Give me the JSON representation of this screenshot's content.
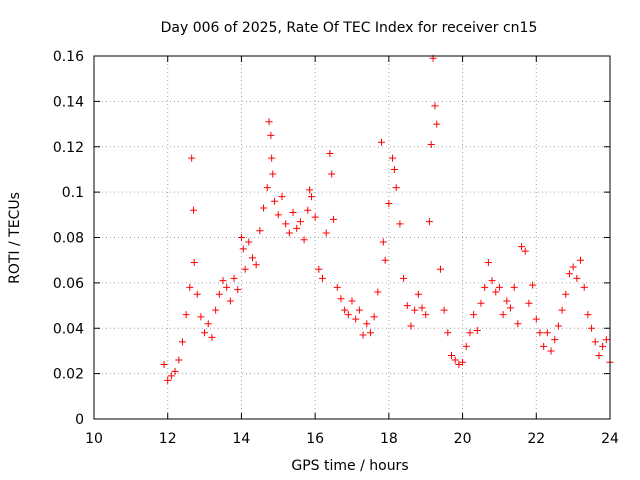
{
  "chart_data": {
    "type": "scatter",
    "title": "Day 006 of 2025, Rate Of TEC Index for receiver cn15",
    "xlabel": "GPS time / hours",
    "ylabel": "ROTI / TECUs",
    "xlim": [
      10,
      24
    ],
    "ylim": [
      0,
      0.16
    ],
    "x_ticks": [
      "10",
      "12",
      "14",
      "16",
      "18",
      "20",
      "22",
      "24"
    ],
    "y_ticks": [
      "0",
      "0.02",
      "0.04",
      "0.06",
      "0.08",
      "0.1",
      "0.12",
      "0.14",
      "0.16"
    ],
    "grid": true,
    "marker": "+",
    "color": "#ff0000",
    "series": [
      {
        "x": [
          11.9,
          12.0,
          12.1,
          12.2,
          12.3,
          12.4,
          12.5,
          12.6,
          12.65,
          12.7,
          12.72,
          12.8,
          12.9,
          13.0,
          13.1,
          13.2,
          13.3,
          13.4,
          13.5,
          13.6,
          13.7,
          13.8,
          13.9,
          14.0,
          14.05,
          14.1,
          14.2,
          14.3,
          14.4,
          14.5,
          14.6,
          14.7,
          14.75,
          14.8,
          14.82,
          14.85,
          14.9,
          15.0,
          15.1,
          15.2,
          15.3,
          15.4,
          15.5,
          15.6,
          15.7,
          15.8,
          15.85,
          15.9,
          16.0,
          16.1,
          16.2,
          16.3,
          16.4,
          16.45,
          16.5,
          16.6,
          16.7,
          16.8,
          16.9,
          17.0,
          17.1,
          17.2,
          17.3,
          17.4,
          17.5,
          17.6,
          17.7,
          17.8,
          17.85,
          17.9,
          18.0,
          18.1,
          18.15,
          18.2,
          18.3,
          18.4,
          18.5,
          18.6,
          18.7,
          18.8,
          18.9,
          19.0,
          19.1,
          19.15,
          19.2,
          19.25,
          19.3,
          19.4,
          19.5,
          19.6,
          19.7,
          19.8,
          19.9,
          20.0,
          20.1,
          20.2,
          20.3,
          20.4,
          20.5,
          20.6,
          20.7,
          20.8,
          20.9,
          21.0,
          21.1,
          21.2,
          21.3,
          21.4,
          21.5,
          21.6,
          21.7,
          21.8,
          21.9,
          22.0,
          22.1,
          22.2,
          22.3,
          22.4,
          22.5,
          22.6,
          22.7,
          22.8,
          22.9,
          23.0,
          23.1,
          23.2,
          23.3,
          23.4,
          23.5,
          23.6,
          23.7,
          23.8,
          23.9,
          24.0
        ],
        "y": [
          0.024,
          0.017,
          0.019,
          0.021,
          0.026,
          0.034,
          0.046,
          0.058,
          0.115,
          0.092,
          0.069,
          0.055,
          0.045,
          0.038,
          0.042,
          0.036,
          0.048,
          0.055,
          0.061,
          0.058,
          0.052,
          0.062,
          0.057,
          0.08,
          0.075,
          0.066,
          0.078,
          0.071,
          0.068,
          0.083,
          0.093,
          0.102,
          0.131,
          0.125,
          0.115,
          0.108,
          0.096,
          0.09,
          0.098,
          0.086,
          0.082,
          0.091,
          0.084,
          0.087,
          0.079,
          0.092,
          0.101,
          0.098,
          0.089,
          0.066,
          0.062,
          0.082,
          0.117,
          0.108,
          0.088,
          0.058,
          0.053,
          0.048,
          0.046,
          0.052,
          0.044,
          0.048,
          0.037,
          0.042,
          0.038,
          0.045,
          0.056,
          0.122,
          0.078,
          0.07,
          0.095,
          0.115,
          0.11,
          0.102,
          0.086,
          0.062,
          0.05,
          0.041,
          0.048,
          0.055,
          0.049,
          0.046,
          0.087,
          0.121,
          0.159,
          0.138,
          0.13,
          0.066,
          0.048,
          0.038,
          0.028,
          0.026,
          0.024,
          0.025,
          0.032,
          0.038,
          0.046,
          0.039,
          0.051,
          0.058,
          0.069,
          0.061,
          0.056,
          0.058,
          0.046,
          0.052,
          0.049,
          0.058,
          0.042,
          0.076,
          0.074,
          0.051,
          0.059,
          0.044,
          0.038,
          0.032,
          0.038,
          0.03,
          0.035,
          0.041,
          0.048,
          0.055,
          0.064,
          0.067,
          0.062,
          0.07,
          0.058,
          0.046,
          0.04,
          0.034,
          0.028,
          0.032,
          0.035,
          0.025
        ]
      }
    ]
  }
}
